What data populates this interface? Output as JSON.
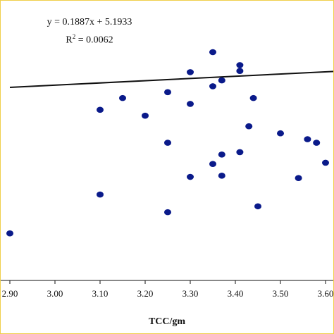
{
  "chart_data": {
    "type": "scatter",
    "title": "",
    "xlabel": "TCC/gm",
    "ylabel": "",
    "xlim": [
      2.9,
      3.6
    ],
    "ylim": [
      4.0,
      6.3
    ],
    "x_ticks": [
      "2.90",
      "3.00",
      "3.10",
      "3.20",
      "3.30",
      "3.40",
      "3.50",
      "3.60"
    ],
    "annotations": {
      "equation": "y = 0.1887x + 5.1933",
      "r2_prefix": "R",
      "r2_exp": "2",
      "r2_value": " = 0.0062"
    },
    "trendline": {
      "slope": 0.1887,
      "intercept": 5.1933
    },
    "grid": false,
    "series": [
      {
        "marker_color": "#0a1a8a",
        "points": [
          {
            "x": 2.9,
            "y": 4.5
          },
          {
            "x": 3.1,
            "y": 5.55
          },
          {
            "x": 3.1,
            "y": 4.83
          },
          {
            "x": 3.15,
            "y": 5.65
          },
          {
            "x": 3.2,
            "y": 5.5
          },
          {
            "x": 3.25,
            "y": 5.7
          },
          {
            "x": 3.25,
            "y": 5.27
          },
          {
            "x": 3.25,
            "y": 4.68
          },
          {
            "x": 3.3,
            "y": 5.87
          },
          {
            "x": 3.3,
            "y": 5.6
          },
          {
            "x": 3.3,
            "y": 4.98
          },
          {
            "x": 3.35,
            "y": 6.04
          },
          {
            "x": 3.35,
            "y": 5.75
          },
          {
            "x": 3.35,
            "y": 5.09
          },
          {
            "x": 3.37,
            "y": 5.8
          },
          {
            "x": 3.37,
            "y": 5.17
          },
          {
            "x": 3.37,
            "y": 4.99
          },
          {
            "x": 3.41,
            "y": 5.93
          },
          {
            "x": 3.41,
            "y": 5.88
          },
          {
            "x": 3.41,
            "y": 5.19
          },
          {
            "x": 3.43,
            "y": 5.41
          },
          {
            "x": 3.44,
            "y": 5.65
          },
          {
            "x": 3.45,
            "y": 4.73
          },
          {
            "x": 3.5,
            "y": 5.35
          },
          {
            "x": 3.54,
            "y": 4.97
          },
          {
            "x": 3.56,
            "y": 5.3
          },
          {
            "x": 3.58,
            "y": 5.27
          },
          {
            "x": 3.6,
            "y": 5.1
          }
        ]
      }
    ]
  }
}
